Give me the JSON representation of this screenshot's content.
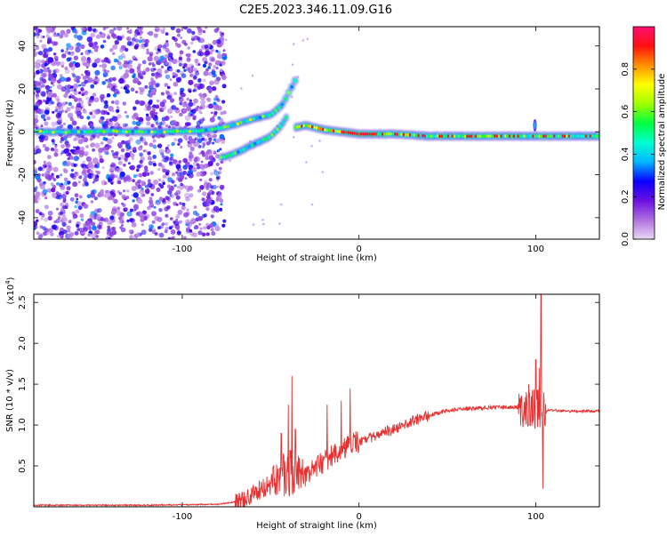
{
  "figure": {
    "title": "C2E5.2023.346.11.09.G16"
  },
  "chart_data": [
    {
      "type": "heatmap",
      "title": "C2E5.2023.346.11.09.G16",
      "xlabel": "Height of straight line (km)",
      "ylabel": "Frequency (Hz)",
      "xlim": [
        -184,
        136
      ],
      "ylim": [
        -50,
        49
      ],
      "xticks": [
        -100,
        0,
        100
      ],
      "yticks": [
        40,
        20,
        0,
        -20,
        -40
      ],
      "colorbar": {
        "label": "Normalized spectral amplitude",
        "range": [
          0,
          1
        ],
        "ticks": [
          0.0,
          0.2,
          0.4,
          0.6,
          0.8
        ],
        "colors": [
          "#e8d8f4",
          "#b070e0",
          "#6a10e0",
          "#0a00ff",
          "#00b8ff",
          "#00ffd0",
          "#00ff40",
          "#a0ff00",
          "#ffff00",
          "#ff9000",
          "#ff1010",
          "#ff1070"
        ]
      },
      "features": [
        {
          "name": "",
          "points": [
            [
              -180,
              0
            ],
            [
              -160,
              0
            ],
            [
              -140,
              0.3
            ],
            [
              -120,
              0
            ],
            [
              -100,
              0.2
            ],
            [
              -90,
              0.5
            ],
            [
              -80,
              1.5
            ],
            [
              -70,
              3.5
            ],
            [
              -60,
              6
            ],
            [
              -50,
              8
            ],
            [
              -44,
              12
            ],
            [
              -40,
              18
            ],
            [
              -36,
              24
            ]
          ]
        },
        {
          "name": "",
          "points": [
            [
              -78,
              -12
            ],
            [
              -70,
              -10
            ],
            [
              -60,
              -6
            ],
            [
              -50,
              -2
            ],
            [
              -44,
              3
            ],
            [
              -40,
              8
            ]
          ]
        },
        {
          "name": "",
          "points": [
            [
              -36,
              2
            ],
            [
              -30,
              3
            ],
            [
              -20,
              1
            ],
            [
              -10,
              0
            ],
            [
              0,
              -1
            ],
            [
              20,
              -1
            ],
            [
              40,
              -2
            ],
            [
              60,
              -2
            ],
            [
              80,
              -2
            ],
            [
              100,
              -2
            ],
            [
              120,
              -2
            ],
            [
              136,
              -2
            ]
          ]
        }
      ]
    },
    {
      "type": "line",
      "title": "",
      "xlabel": "Height of straight line (km)",
      "ylabel": "SNR (10 * v/v)",
      "y_multiplier": "(x10",
      "y_multiplier_exp": "4",
      "y_multiplier_close": ")",
      "xlim": [
        -184,
        136
      ],
      "ylim": [
        0,
        2.6
      ],
      "xticks": [
        -100,
        0,
        100
      ],
      "yticks": [
        0.5,
        1.0,
        1.5,
        2.0,
        2.5
      ],
      "color": "#e83030",
      "envelope": [
        [
          -184,
          0.02
        ],
        [
          -120,
          0.02
        ],
        [
          -80,
          0.03
        ],
        [
          -70,
          0.06
        ],
        [
          -60,
          0.15
        ],
        [
          -50,
          0.3
        ],
        [
          -40,
          0.42
        ],
        [
          -30,
          0.4
        ],
        [
          -20,
          0.55
        ],
        [
          -10,
          0.7
        ],
        [
          0,
          0.8
        ],
        [
          10,
          0.88
        ],
        [
          20,
          0.95
        ],
        [
          30,
          1.05
        ],
        [
          40,
          1.12
        ],
        [
          50,
          1.18
        ],
        [
          60,
          1.2
        ],
        [
          70,
          1.21
        ],
        [
          80,
          1.22
        ],
        [
          90,
          1.22
        ],
        [
          100,
          1.2
        ],
        [
          105,
          1.18
        ],
        [
          110,
          1.18
        ],
        [
          120,
          1.17
        ],
        [
          136,
          1.17
        ]
      ],
      "peaks": [
        [
          -38,
          1.6
        ],
        [
          -40,
          1.25
        ],
        [
          -36,
          0.95
        ],
        [
          -44,
          0.9
        ],
        [
          -18,
          1.25
        ],
        [
          -10,
          1.3
        ],
        [
          -5,
          1.45
        ],
        [
          96,
          1.5
        ],
        [
          100,
          1.8
        ],
        [
          102,
          1.7
        ],
        [
          103,
          2.6
        ],
        [
          104,
          0.22
        ]
      ]
    }
  ]
}
